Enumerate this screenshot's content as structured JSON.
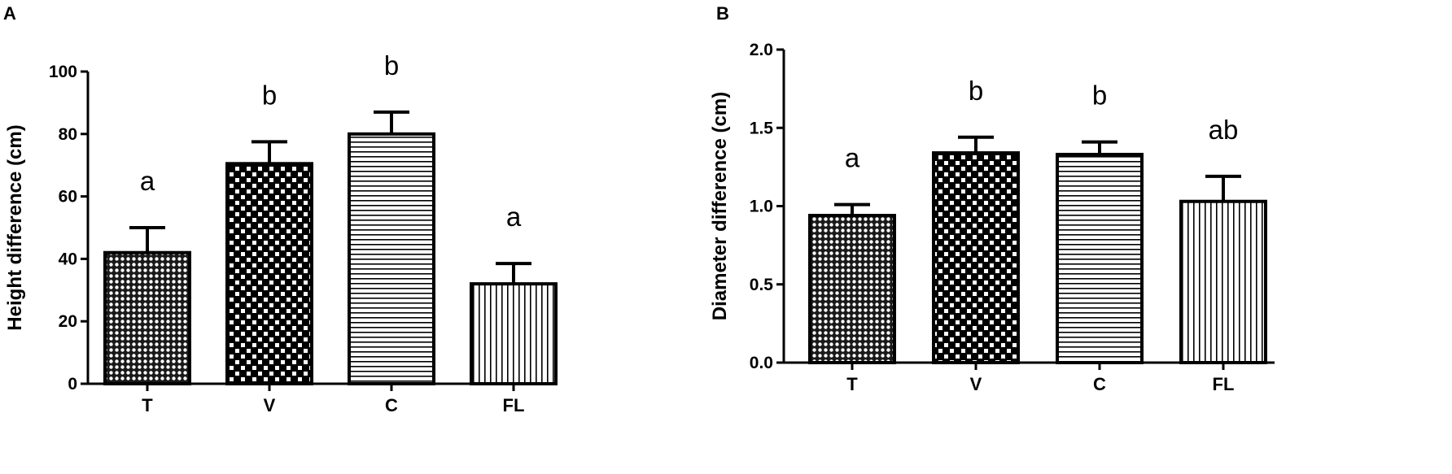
{
  "chart_data": [
    {
      "type": "bar",
      "panel": "A",
      "categories": [
        "T",
        "V",
        "C",
        "FL"
      ],
      "values": [
        42,
        70.5,
        80,
        32
      ],
      "errors": [
        8,
        7,
        7,
        6.5
      ],
      "significance": [
        "a",
        "b",
        "b",
        "a"
      ],
      "patterns": [
        "dots",
        "checker",
        "hlines",
        "vlines"
      ],
      "xlabel": "",
      "ylabel": "Height difference (cm)",
      "ylim": [
        0,
        100
      ],
      "yticks": [
        "0",
        "20",
        "40",
        "60",
        "80",
        "100"
      ],
      "grid": false
    },
    {
      "type": "bar",
      "panel": "B",
      "categories": [
        "T",
        "V",
        "C",
        "FL"
      ],
      "values": [
        0.94,
        1.34,
        1.33,
        1.03
      ],
      "errors": [
        0.07,
        0.1,
        0.08,
        0.16
      ],
      "significance": [
        "a",
        "b",
        "b",
        "ab"
      ],
      "patterns": [
        "dots",
        "checker",
        "hlines",
        "vlines"
      ],
      "xlabel": "",
      "ylabel": "Diameter difference (cm)",
      "ylim": [
        0,
        2.0
      ],
      "yticks": [
        "0.0",
        "0.5",
        "1.0",
        "1.5",
        "2.0"
      ],
      "grid": false
    }
  ]
}
